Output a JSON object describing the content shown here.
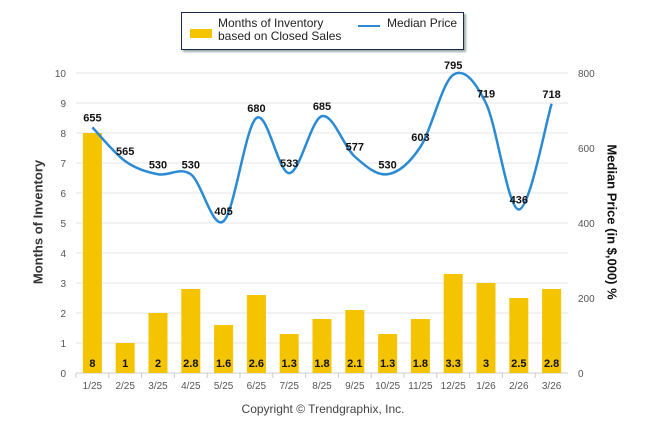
{
  "chart_data": {
    "type": "bar",
    "categories": [
      "1/25",
      "2/25",
      "3/25",
      "4/25",
      "5/25",
      "6/25",
      "7/25",
      "8/25",
      "9/25",
      "10/25",
      "11/25",
      "12/25",
      "1/26",
      "2/26",
      "3/26"
    ],
    "series": [
      {
        "name": "Months of Inventory based on Closed Sales",
        "type": "bar",
        "axis": "left",
        "color": "#f5c400",
        "values": [
          8,
          1,
          2,
          2.8,
          1.6,
          2.6,
          1.3,
          1.8,
          2.1,
          1.3,
          1.8,
          3.3,
          3,
          2.5,
          2.8
        ],
        "labels": [
          "8",
          "1",
          "2",
          "2.8",
          "1.6",
          "2.6",
          "1.3",
          "1.8",
          "2.1",
          "1.3",
          "1.8",
          "3.3",
          "3",
          "2.5",
          "2.8"
        ]
      },
      {
        "name": "Median Price",
        "type": "line",
        "axis": "right",
        "color": "#2a8ad4",
        "values": [
          655,
          565,
          530,
          530,
          405,
          680,
          533,
          685,
          577,
          530,
          603,
          795,
          719,
          436,
          718
        ],
        "labels": [
          "655",
          "565",
          "530",
          "530",
          "405",
          "680",
          "533",
          "685",
          "577",
          "530",
          "603",
          "795",
          "719",
          "436",
          "718"
        ]
      }
    ],
    "ylabel": "Months of Inventory",
    "y2label": "Median Price (in $,000) %",
    "ylim": [
      0,
      10
    ],
    "y2lim": [
      0,
      800
    ],
    "yticks": [
      "0",
      "1",
      "2",
      "3",
      "4",
      "5",
      "6",
      "7",
      "8",
      "9",
      "10"
    ],
    "y2ticks": [
      "0",
      "200",
      "400",
      "600",
      "800"
    ],
    "legend": "top-center",
    "grid": true
  },
  "legend": {
    "bar_label": "Months of Inventory based on Closed Sales",
    "line_label": "Median Price"
  },
  "footer": {
    "copyright": "Copyright © Trendgraphix, Inc."
  }
}
